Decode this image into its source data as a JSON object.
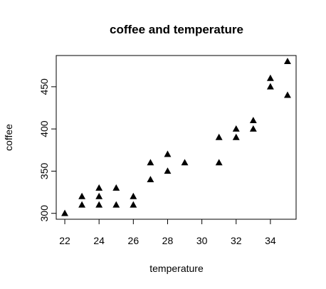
{
  "chart_data": {
    "type": "scatter",
    "title": "coffee and temperature",
    "xlabel": "temperature",
    "ylabel": "coffee",
    "marker": "filled-triangle",
    "marker_color": "#000000",
    "xlim": [
      21.5,
      35.5
    ],
    "ylim": [
      293,
      487
    ],
    "grid": false,
    "x_ticks": [
      22,
      24,
      26,
      28,
      30,
      32,
      34
    ],
    "y_ticks": [
      300,
      350,
      400,
      450
    ],
    "x_tick_labels": [
      "22",
      "24",
      "26",
      "28",
      "30",
      "32",
      "34"
    ],
    "y_tick_labels": [
      "300",
      "350",
      "400",
      "450"
    ],
    "points": [
      {
        "x": 22,
        "y": 300
      },
      {
        "x": 23,
        "y": 310
      },
      {
        "x": 23,
        "y": 320
      },
      {
        "x": 24,
        "y": 310
      },
      {
        "x": 24,
        "y": 320
      },
      {
        "x": 24,
        "y": 330
      },
      {
        "x": 25,
        "y": 310
      },
      {
        "x": 25,
        "y": 330
      },
      {
        "x": 26,
        "y": 310
      },
      {
        "x": 26,
        "y": 320
      },
      {
        "x": 27,
        "y": 340
      },
      {
        "x": 27,
        "y": 360
      },
      {
        "x": 28,
        "y": 350
      },
      {
        "x": 28,
        "y": 370
      },
      {
        "x": 29,
        "y": 360
      },
      {
        "x": 31,
        "y": 360
      },
      {
        "x": 31,
        "y": 390
      },
      {
        "x": 32,
        "y": 390
      },
      {
        "x": 32,
        "y": 400
      },
      {
        "x": 33,
        "y": 400
      },
      {
        "x": 33,
        "y": 410
      },
      {
        "x": 34,
        "y": 450
      },
      {
        "x": 34,
        "y": 460
      },
      {
        "x": 35,
        "y": 440
      },
      {
        "x": 35,
        "y": 480
      }
    ]
  }
}
